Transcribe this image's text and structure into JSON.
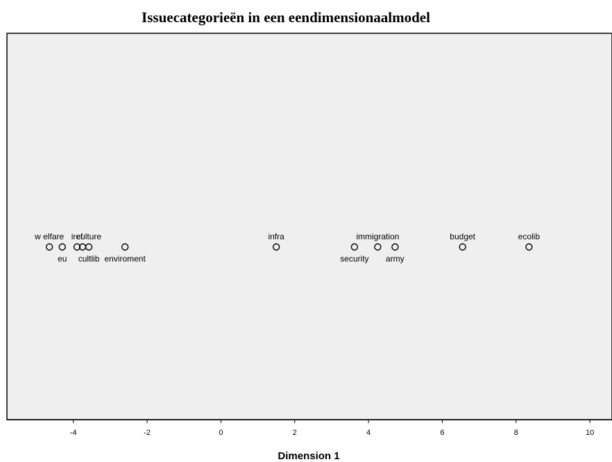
{
  "chart_data": {
    "type": "scatter",
    "title": "Issuecategorieën in een eendimensionaalmodel",
    "xlabel": "Dimension 1",
    "ylabel": "",
    "xlim": [
      -5.8,
      10.6
    ],
    "xticks": [
      -4,
      -2,
      0,
      2,
      4,
      6,
      8,
      10
    ],
    "grid": false,
    "legend": "none",
    "background": "#efefef",
    "marker_color": "#000000",
    "points": [
      {
        "label": "w elfare",
        "x": -4.65,
        "y": 0,
        "label_pos": "above"
      },
      {
        "label": "eu",
        "x": -4.3,
        "y": 0,
        "label_pos": "below"
      },
      {
        "label": "iref",
        "x": -3.9,
        "y": 0,
        "label_pos": "above"
      },
      {
        "label": "",
        "x": -3.75,
        "y": 0,
        "label_pos": "none"
      },
      {
        "label": "culture",
        "x": -3.58,
        "y": 0,
        "label_pos": "above"
      },
      {
        "label": "cultlib",
        "x": -3.58,
        "y": 0,
        "label_pos": "below"
      },
      {
        "label": "enviroment",
        "x": -2.6,
        "y": 0,
        "label_pos": "below"
      },
      {
        "label": "infra",
        "x": 1.5,
        "y": 0,
        "label_pos": "above"
      },
      {
        "label": "security",
        "x": 3.62,
        "y": 0,
        "label_pos": "below"
      },
      {
        "label": "immigration",
        "x": 4.25,
        "y": 0,
        "label_pos": "above"
      },
      {
        "label": "army",
        "x": 4.72,
        "y": 0,
        "label_pos": "below"
      },
      {
        "label": "budget",
        "x": 6.55,
        "y": 0,
        "label_pos": "above"
      },
      {
        "label": "ecolib",
        "x": 8.35,
        "y": 0,
        "label_pos": "above"
      }
    ]
  }
}
